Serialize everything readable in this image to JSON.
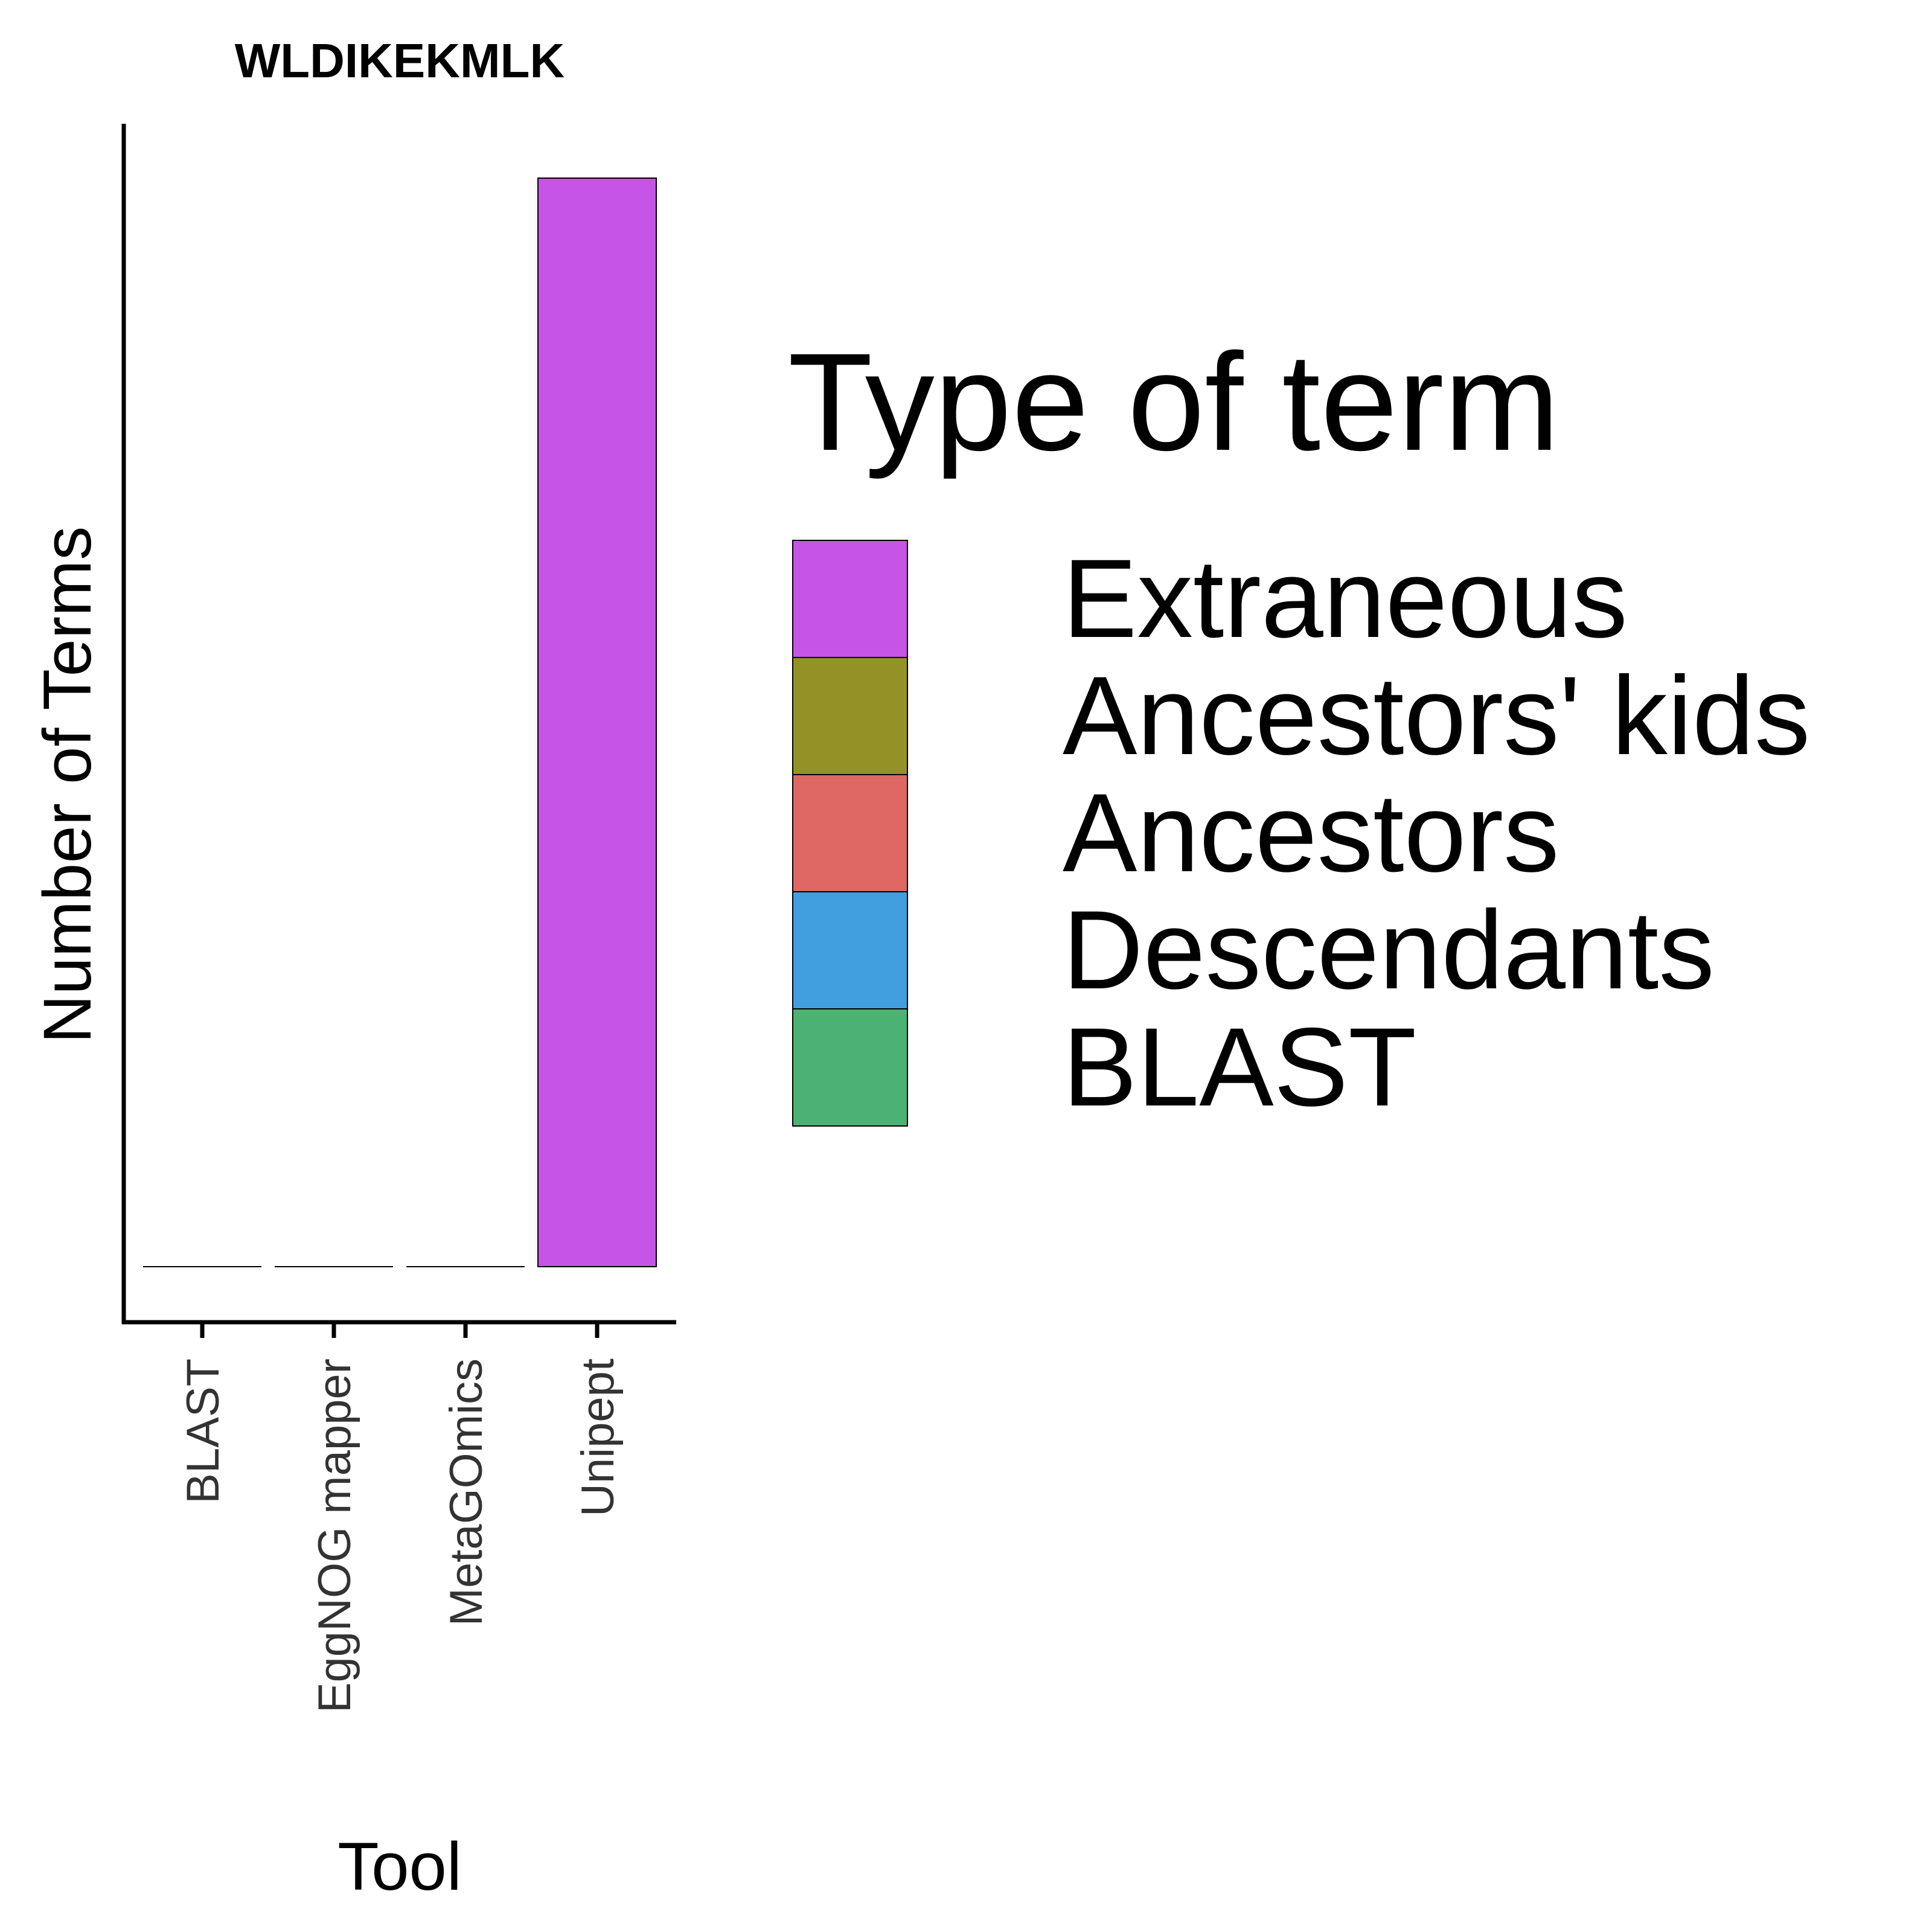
{
  "chart_data": {
    "type": "bar",
    "title": "WLDIKEKMLK",
    "xlabel": "Tool",
    "ylabel": "Number of Terms",
    "categories": [
      "BLAST",
      "EggNOG mapper",
      "MetaGOmics",
      "Unipept"
    ],
    "series": [
      {
        "name": "Extraneous",
        "values": [
          0,
          0,
          0,
          1
        ]
      },
      {
        "name": "Ancestors' kids",
        "values": [
          0,
          0,
          0,
          0
        ]
      },
      {
        "name": "Ancestors",
        "values": [
          0,
          0,
          0,
          0
        ]
      },
      {
        "name": "Descendants",
        "values": [
          0,
          0,
          0,
          0
        ]
      },
      {
        "name": "BLAST",
        "values": [
          0,
          0,
          0,
          0
        ]
      }
    ],
    "ylim": [
      0,
      1
    ],
    "stacked": true,
    "grid": false,
    "y_tick_labels_shown": false,
    "x_tick_label_rotation": -90,
    "legend": {
      "title": "Type of term",
      "placement": "right",
      "items": [
        {
          "label": "Extraneous",
          "color": "#C554E7"
        },
        {
          "label": "Ancestors' kids",
          "color": "#949227"
        },
        {
          "label": "Ancestors",
          "color": "#DF6864"
        },
        {
          "label": "Descendants",
          "color": "#429FDF"
        },
        {
          "label": "BLAST",
          "color": "#4CB273"
        }
      ]
    }
  }
}
